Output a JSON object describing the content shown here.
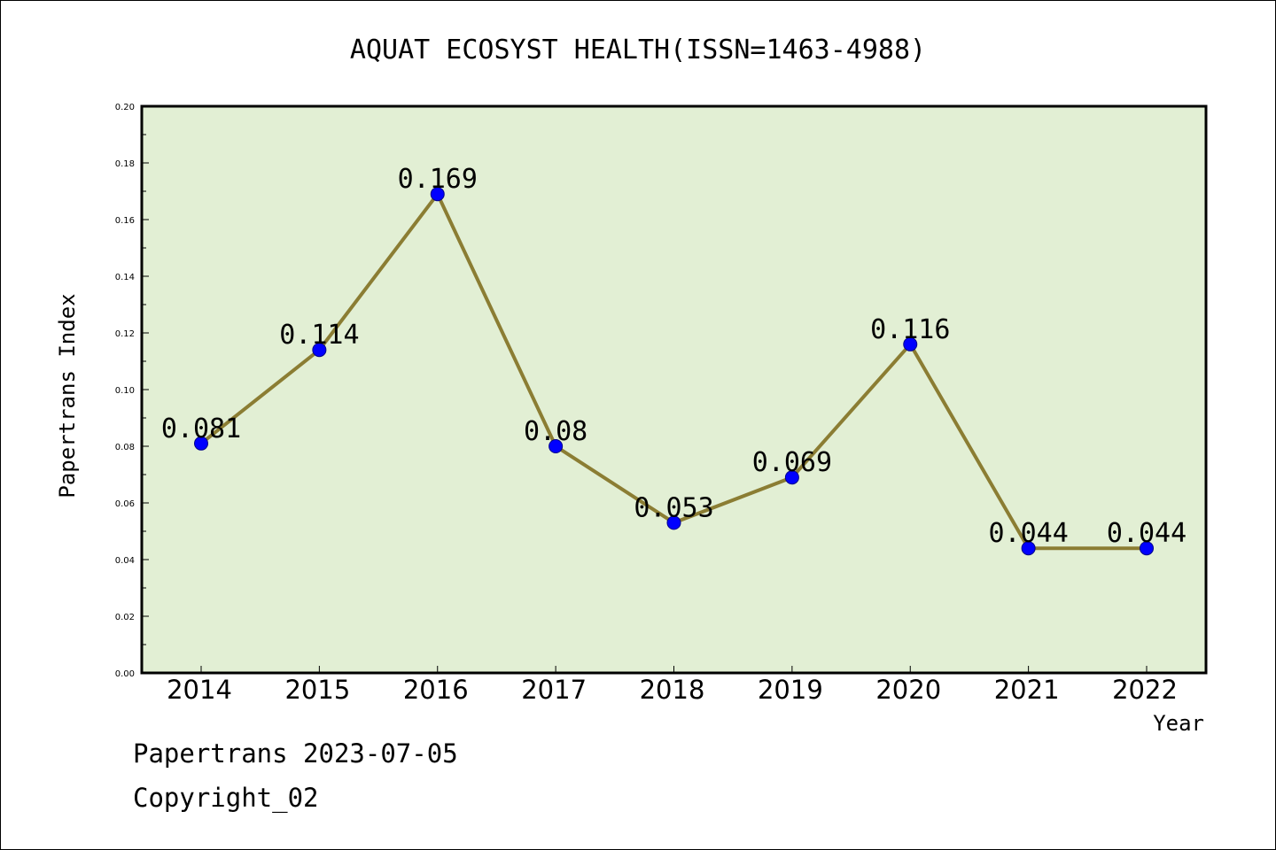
{
  "chart_data": {
    "type": "line",
    "title": "AQUAT ECOSYST HEALTH(ISSN=1463-4988)",
    "xlabel": "Year",
    "ylabel": "Papertrans Index",
    "categories": [
      "2014",
      "2015",
      "2016",
      "2017",
      "2018",
      "2019",
      "2020",
      "2021",
      "2022"
    ],
    "series": [
      {
        "values": [
          0.081,
          0.114,
          0.169,
          0.08,
          0.053,
          0.069,
          0.116,
          0.044,
          0.044
        ],
        "data_labels": [
          "0.081",
          "0.114",
          "0.169",
          "0.08",
          "0.053",
          "0.069",
          "0.116",
          "0.044",
          "0.044"
        ]
      }
    ],
    "ylim": [
      0,
      0.2
    ],
    "yticks": [
      "0.00",
      "0.02",
      "0.04",
      "0.06",
      "0.08",
      "0.10",
      "0.12",
      "0.14",
      "0.16",
      "0.18",
      "0.20"
    ],
    "grid": false,
    "colors": {
      "plot_background": "#e2efd4",
      "line": "#8b7d33",
      "marker": "#0000ff",
      "marker_edge": "#00008b"
    }
  },
  "footer": {
    "line1": "Papertrans 2023-07-05",
    "line2": "Copyright_02"
  }
}
